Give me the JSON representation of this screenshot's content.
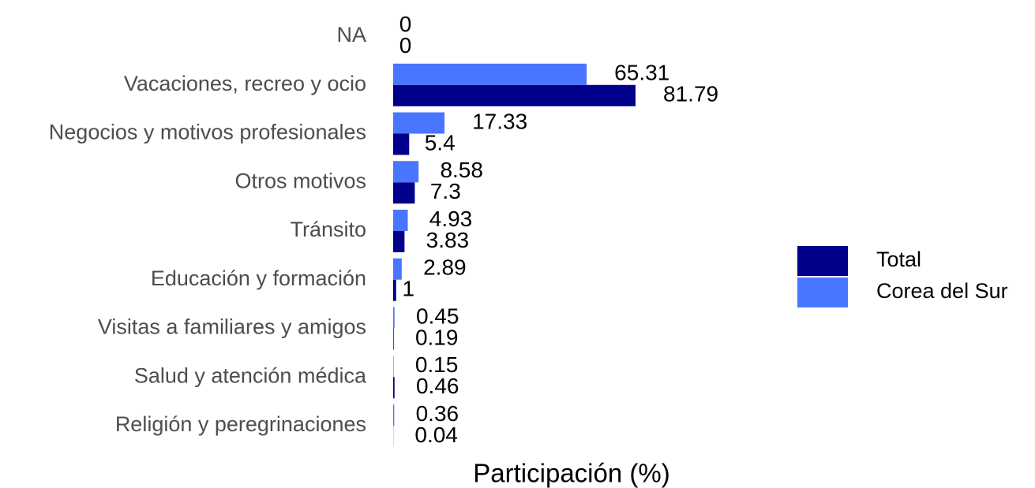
{
  "chart_data": {
    "type": "bar",
    "orientation": "horizontal",
    "x_label": "Participación (%)",
    "categories": [
      "NA",
      "Vacaciones, recreo y ocio",
      "Negocios y motivos profesionales",
      "Otros motivos",
      "Tránsito",
      "Educación y formación",
      "Visitas a familiares y amigos",
      "Salud y atención médica",
      "Religión y peregrinaciones"
    ],
    "series": [
      {
        "name": "Total",
        "color": "#00008b",
        "values": [
          0,
          81.79,
          5.4,
          7.3,
          3.83,
          1,
          0.19,
          0.46,
          0.04
        ]
      },
      {
        "name": "Corea del Sur",
        "color": "#4876ff",
        "values": [
          0,
          65.31,
          17.33,
          8.58,
          4.93,
          2.89,
          0.45,
          0.15,
          0.36
        ]
      }
    ],
    "legend": "right",
    "grid": false
  }
}
